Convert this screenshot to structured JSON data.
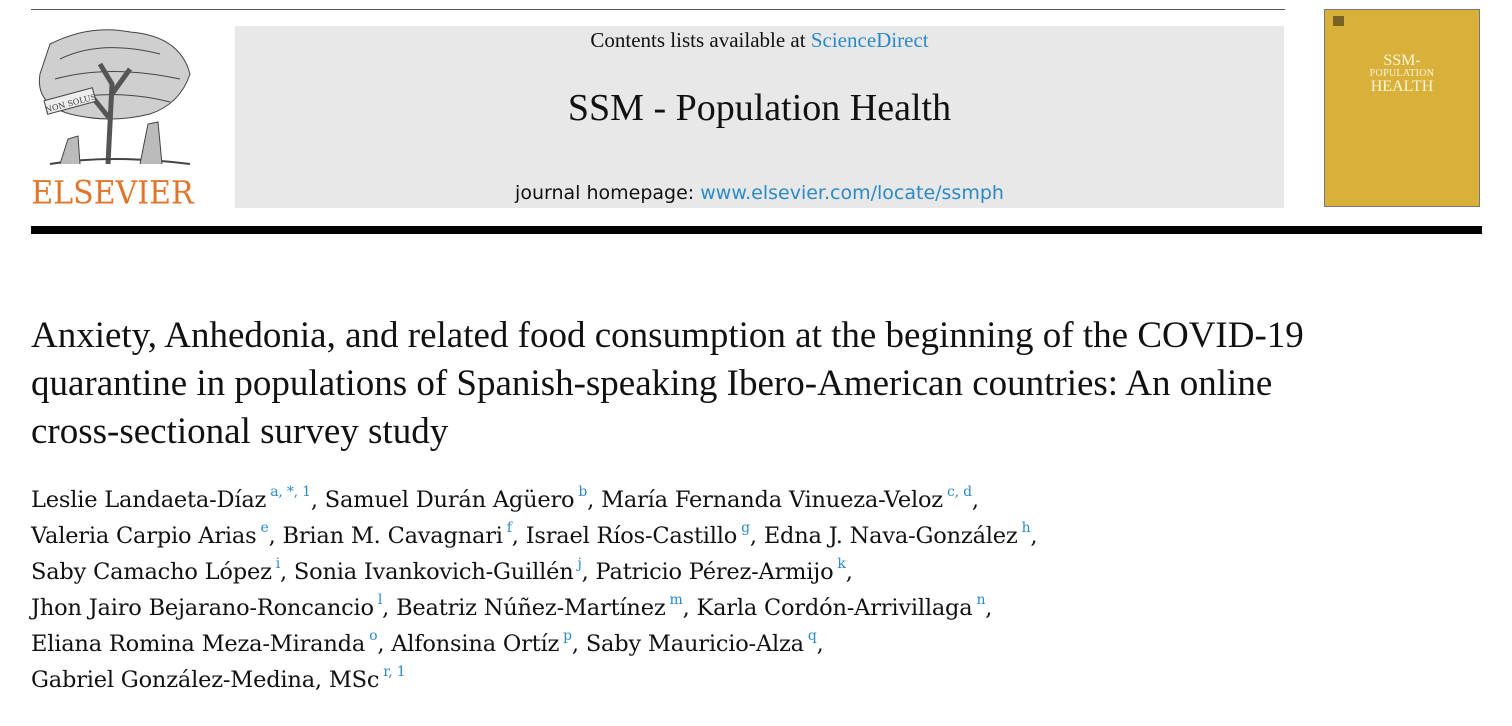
{
  "header": {
    "contents_prefix": "Contents lists available at ",
    "contents_link": "ScienceDirect",
    "journal_title": "SSM - Population Health",
    "homepage_prefix": "journal homepage: ",
    "homepage_link": "www.elsevier.com/locate/ssmph",
    "publisher": "ELSEVIER",
    "logo_motto": "NON SOLUS"
  },
  "cover": {
    "line1": "SSM-",
    "line2": "POPULATION",
    "line3": "HEALTH",
    "color": "#d9b13a"
  },
  "article": {
    "title": "Anxiety, Anhedonia, and related food consumption at the beginning of the COVID-19 quarantine in populations of Spanish-speaking Ibero-American countries: An online cross-sectional survey study"
  },
  "authors": [
    [
      {
        "name": "Leslie Landaeta-Díaz",
        "aff": "a, *, 1",
        "sep": ", "
      },
      {
        "name": "Samuel Durán Agüero",
        "aff": "b",
        "sep": ", "
      },
      {
        "name": "María Fernanda Vinueza-Veloz",
        "aff": "c, d",
        "sep": ","
      }
    ],
    [
      {
        "name": "Valeria Carpio Arias",
        "aff": "e",
        "sep": ", "
      },
      {
        "name": "Brian M. Cavagnari",
        "aff": "f",
        "sep": ", "
      },
      {
        "name": "Israel Ríos-Castillo",
        "aff": "g",
        "sep": ", "
      },
      {
        "name": "Edna J. Nava-González",
        "aff": "h",
        "sep": ","
      }
    ],
    [
      {
        "name": "Saby Camacho López",
        "aff": "i",
        "sep": ", "
      },
      {
        "name": "Sonia Ivankovich-Guillén",
        "aff": "j",
        "sep": ", "
      },
      {
        "name": "Patricio Pérez-Armijo",
        "aff": "k",
        "sep": ","
      }
    ],
    [
      {
        "name": "Jhon Jairo Bejarano-Roncancio",
        "aff": "l",
        "sep": ", "
      },
      {
        "name": "Beatriz Núñez-Martínez",
        "aff": "m",
        "sep": ", "
      },
      {
        "name": "Karla Cordón-Arrivillaga",
        "aff": "n",
        "sep": ","
      }
    ],
    [
      {
        "name": "Eliana Romina Meza-Miranda",
        "aff": "o",
        "sep": ", "
      },
      {
        "name": "Alfonsina Ortíz",
        "aff": "p",
        "sep": ", "
      },
      {
        "name": "Saby Mauricio-Alza",
        "aff": "q",
        "sep": ","
      }
    ],
    [
      {
        "name": "Gabriel González-Medina, MSc",
        "aff": "r, 1",
        "sep": ""
      }
    ]
  ],
  "colors": {
    "link": "#2a8ac8",
    "publisher_orange": "#e2752a",
    "banner_bg": "#e8e8e8"
  }
}
